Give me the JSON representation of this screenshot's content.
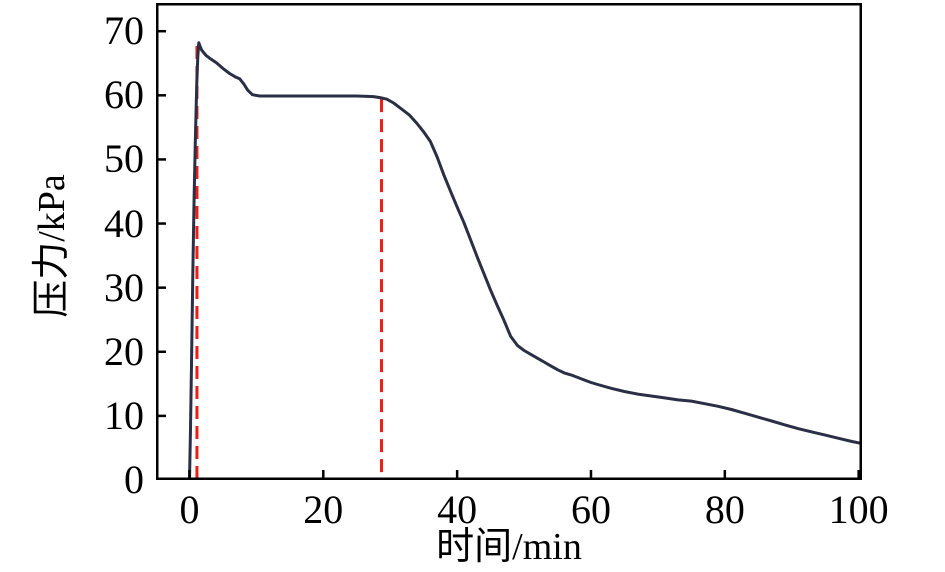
{
  "chart_data": {
    "type": "line",
    "title": "",
    "xlabel": "时间/min",
    "ylabel": "压力/kPa",
    "xlim": [
      -5,
      100.5
    ],
    "ylim": [
      0,
      74.4
    ],
    "xticks": [
      0,
      20,
      40,
      60,
      80,
      100
    ],
    "yticks": [
      0,
      10,
      20,
      30,
      40,
      50,
      60,
      70
    ],
    "grid": false,
    "legend": "none",
    "frame_color": "#000000",
    "background": "#ffffff",
    "series": [
      {
        "name": "pressure-curve",
        "color": "#2b2f45",
        "stroke_width": 3,
        "points": [
          [
            0,
            0
          ],
          [
            0.15,
            8
          ],
          [
            0.3,
            18
          ],
          [
            0.5,
            32
          ],
          [
            0.7,
            44
          ],
          [
            0.9,
            54
          ],
          [
            1.1,
            62
          ],
          [
            1.25,
            66
          ],
          [
            1.4,
            68.2
          ],
          [
            1.6,
            67.6
          ],
          [
            1.8,
            67.1
          ],
          [
            2.1,
            66.7
          ],
          [
            2.5,
            66.2
          ],
          [
            3,
            65.8
          ],
          [
            4,
            65.1
          ],
          [
            5,
            64.2
          ],
          [
            6,
            63.4
          ],
          [
            6.8,
            62.9
          ],
          [
            7.5,
            62.6
          ],
          [
            8.1,
            61.8
          ],
          [
            8.7,
            60.8
          ],
          [
            9.4,
            60.1
          ],
          [
            10.5,
            59.9
          ],
          [
            13,
            59.9
          ],
          [
            16,
            59.9
          ],
          [
            19,
            59.9
          ],
          [
            22,
            59.9
          ],
          [
            25,
            59.9
          ],
          [
            27.5,
            59.8
          ],
          [
            28.7,
            59.6
          ],
          [
            29.5,
            59.4
          ],
          [
            30.5,
            58.8
          ],
          [
            31.5,
            58.0
          ],
          [
            32.9,
            56.9
          ],
          [
            34,
            55.6
          ],
          [
            35,
            54.3
          ],
          [
            36,
            52.8
          ],
          [
            37,
            50.4
          ],
          [
            38,
            47.6
          ],
          [
            39,
            45.1
          ],
          [
            40,
            42.6
          ],
          [
            41,
            40.2
          ],
          [
            42,
            37.5
          ],
          [
            43,
            34.8
          ],
          [
            44,
            32.2
          ],
          [
            45,
            29.6
          ],
          [
            46,
            27.2
          ],
          [
            47,
            24.9
          ],
          [
            48,
            22.4
          ],
          [
            49,
            21.0
          ],
          [
            50,
            20.2
          ],
          [
            51,
            19.6
          ],
          [
            52,
            19.0
          ],
          [
            53,
            18.4
          ],
          [
            54,
            17.8
          ],
          [
            55,
            17.2
          ],
          [
            56,
            16.7
          ],
          [
            57,
            16.4
          ],
          [
            58,
            16.0
          ],
          [
            59,
            15.6
          ],
          [
            60,
            15.2
          ],
          [
            61,
            14.9
          ],
          [
            63,
            14.3
          ],
          [
            65,
            13.8
          ],
          [
            67,
            13.4
          ],
          [
            69,
            13.1
          ],
          [
            71,
            12.8
          ],
          [
            73,
            12.5
          ],
          [
            75,
            12.3
          ],
          [
            77,
            11.9
          ],
          [
            79,
            11.5
          ],
          [
            81,
            11.0
          ],
          [
            83,
            10.4
          ],
          [
            85,
            9.8
          ],
          [
            87,
            9.2
          ],
          [
            89,
            8.6
          ],
          [
            91,
            8.0
          ],
          [
            93,
            7.5
          ],
          [
            95,
            7.0
          ],
          [
            97,
            6.5
          ],
          [
            99,
            6.0
          ],
          [
            100.5,
            5.7
          ]
        ]
      }
    ],
    "annotations": {
      "vlines": [
        {
          "name": "vline-peak",
          "x": 1.12,
          "y0": 0,
          "y1": 67.7,
          "color": "#ee1d16",
          "stroke_width": 3,
          "dash": "13 7"
        },
        {
          "name": "vline-plateau-end",
          "x": 28.7,
          "y0": 0,
          "y1": 59.4,
          "color": "#ee1d16",
          "stroke_width": 3,
          "dash": "13 7"
        }
      ]
    },
    "axis": {
      "tick_length": 10,
      "tick_width": 2.5,
      "tick_direction": "in",
      "spine_width": 2.5
    }
  }
}
